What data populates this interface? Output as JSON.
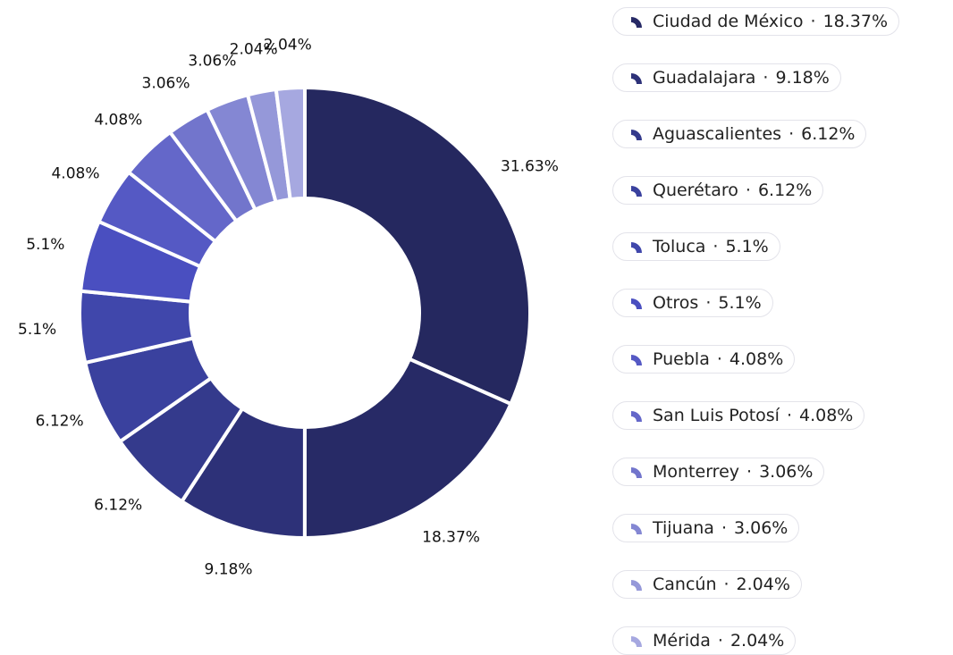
{
  "chart_data": {
    "type": "donut",
    "categories": [
      null,
      "Ciudad de México",
      "Guadalajara",
      "Aguascalientes",
      "Querétaro",
      "Toluca",
      "Otros",
      "Puebla",
      "San Luis Potosí",
      "Monterrey",
      "Tijuana",
      "Cancún",
      "Mérida"
    ],
    "values": [
      31.63,
      18.37,
      9.18,
      6.12,
      6.12,
      5.1,
      5.1,
      4.08,
      4.08,
      3.06,
      3.06,
      2.04,
      2.04
    ],
    "value_labels": [
      "31.63%",
      "18.37%",
      "9.18%",
      "6.12%",
      "6.12%",
      "5.1%",
      "5.1%",
      "4.08%",
      "4.08%",
      "3.06%",
      "3.06%",
      "2.04%",
      "2.04%"
    ],
    "colors": [
      "#25285f",
      "#272a66",
      "#2d3178",
      "#343a8c",
      "#3a419e",
      "#4047ab",
      "#4a4fc0",
      "#5559c4",
      "#6467c9",
      "#7275cc",
      "#8487d3",
      "#9598d9",
      "#a6a8e0"
    ]
  }
}
